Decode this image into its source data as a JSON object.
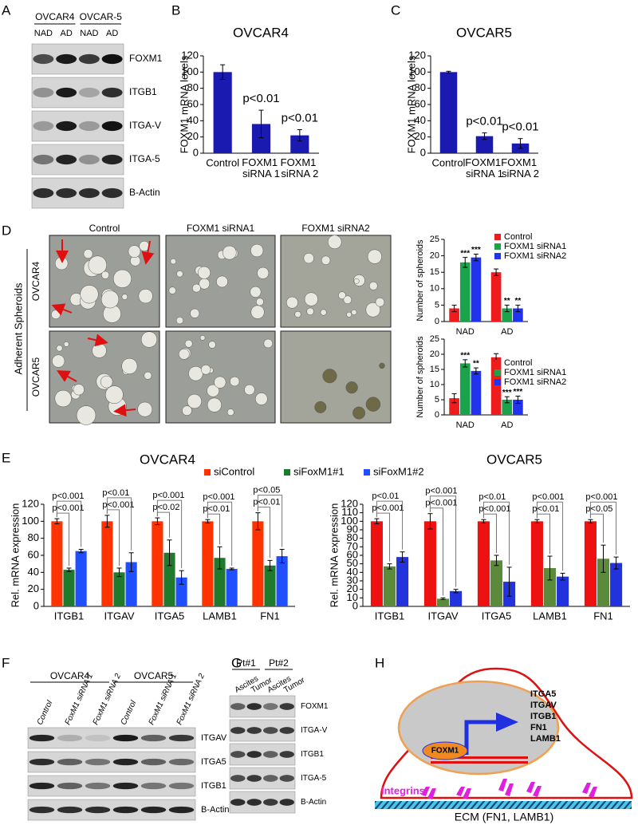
{
  "panel_labels": [
    "A",
    "B",
    "C",
    "D",
    "E",
    "F",
    "G",
    "H"
  ],
  "chart_data": [
    {
      "type": "bar",
      "title": "OVCAR4",
      "ylabel": "FOXM1 mRNA levels",
      "categories": [
        "Control",
        "FOXM1 siRNA 1",
        "FOXM1 siRNA 2"
      ],
      "values": [
        100,
        36,
        22
      ],
      "errors": [
        9,
        17,
        7
      ],
      "annotations": [
        null,
        "p<0.01",
        "p<0.01"
      ],
      "color": "#1a1ab0",
      "ylim": [
        0,
        120
      ],
      "yticks": [
        0,
        20,
        40,
        60,
        80,
        100,
        120
      ]
    },
    {
      "type": "bar",
      "title": "OVCAR5",
      "ylabel": "FOXM1 mRNA levels",
      "categories": [
        "Control",
        "FOXM1 siRNA 1",
        "FOXM1 siRNA 2"
      ],
      "values": [
        100,
        21,
        12
      ],
      "errors": [
        1,
        4,
        6
      ],
      "annotations": [
        null,
        "p<0.01",
        "p<0.01"
      ],
      "color": "#1a1ab0",
      "ylim": [
        0,
        120
      ],
      "yticks": [
        0,
        20,
        40,
        60,
        80,
        100,
        120
      ]
    },
    {
      "type": "bar",
      "ylabel": "Number of spheroids",
      "categories": [
        "NAD",
        "AD"
      ],
      "legend": "upper right",
      "series": [
        {
          "name": "Control",
          "color": "#ee1c1c",
          "values": [
            4,
            15
          ],
          "errors": [
            1,
            1
          ]
        },
        {
          "name": "FOXM1 siRNA1",
          "color": "#1aa34a",
          "values": [
            18,
            4
          ],
          "errors": [
            1.5,
            1
          ],
          "annotations": [
            "***",
            "**"
          ]
        },
        {
          "name": "FOXM1 siRNA2",
          "color": "#2233ee",
          "values": [
            19.5,
            4
          ],
          "errors": [
            1,
            1
          ],
          "annotations": [
            "***",
            "**"
          ]
        }
      ],
      "ylim": [
        0,
        25
      ],
      "yticks": [
        0,
        5,
        10,
        15,
        20,
        25
      ]
    },
    {
      "type": "bar",
      "ylabel": "Number of spheroids",
      "categories": [
        "NAD",
        "AD"
      ],
      "legend": "upper right",
      "series": [
        {
          "name": "Control",
          "color": "#ee1c1c",
          "values": [
            5.5,
            19
          ],
          "errors": [
            1.5,
            1.2
          ]
        },
        {
          "name": "FOXM1 siRNA1",
          "color": "#1aa34a",
          "values": [
            17,
            5
          ],
          "errors": [
            1.2,
            1
          ],
          "annotations": [
            "***",
            "***"
          ]
        },
        {
          "name": "FOXM1 siRNA2",
          "color": "#2233ee",
          "values": [
            14.5,
            5
          ],
          "errors": [
            1,
            1.2
          ],
          "annotations": [
            "**",
            "***"
          ]
        }
      ],
      "ylim": [
        0,
        25
      ],
      "yticks": [
        0,
        5,
        10,
        15,
        20,
        25
      ]
    },
    {
      "type": "bar",
      "title": "OVCAR4",
      "ylabel": "Rel. mRNA expression",
      "legend": "top",
      "categories": [
        "ITGB1",
        "ITGAV",
        "ITGA5",
        "LAMB1",
        "FN1"
      ],
      "series": [
        {
          "name": "siControl",
          "color": "#ff3300",
          "values": [
            100,
            100,
            100,
            100,
            100
          ],
          "errors": [
            3,
            7,
            4,
            2,
            10
          ]
        },
        {
          "name": "siFoxM1#1",
          "color": "#1f7a2e",
          "values": [
            43,
            40,
            63,
            57,
            48
          ],
          "errors": [
            2,
            5,
            15,
            13,
            6
          ],
          "p_values": [
            "p<0.001",
            "p<0.001",
            "p<0.02",
            "p<0.01",
            "p<0.01"
          ]
        },
        {
          "name": "siFoxM1#2",
          "color": "#1f4fff",
          "values": [
            65,
            52,
            34,
            44,
            59
          ],
          "errors": [
            2,
            11,
            8,
            1,
            8
          ],
          "p_values": [
            "p<0.001",
            "p<0.01",
            "p<0.001",
            "p<0.001",
            "p<0.05"
          ]
        }
      ],
      "ylim": [
        0,
        120
      ],
      "yticks": [
        0,
        20,
        40,
        60,
        80,
        100,
        120
      ]
    },
    {
      "type": "bar",
      "title": "OVCAR5",
      "ylabel": "Rel. mRNA expression",
      "categories": [
        "ITGB1",
        "ITGAV",
        "ITGA5",
        "LAMB1",
        "FN1"
      ],
      "series": [
        {
          "color": "#ee1111",
          "values": [
            100,
            100,
            100,
            100,
            100
          ],
          "errors": [
            3,
            9,
            2,
            2,
            2
          ]
        },
        {
          "color": "#5a8a3a",
          "values": [
            47,
            9,
            54,
            45,
            56
          ],
          "errors": [
            3,
            1,
            6,
            14,
            16
          ],
          "p_values": [
            "p<0.001",
            "p<0.001",
            "p<0.001",
            "p<0.01",
            "p<0.05"
          ]
        },
        {
          "color": "#2233dd",
          "values": [
            58,
            18,
            29,
            35,
            51
          ],
          "errors": [
            6,
            2,
            17,
            4,
            7
          ],
          "p_values": [
            "p<0.01",
            "p<0.001",
            "p<0.01",
            "p<0.001",
            "p<0.001"
          ]
        }
      ],
      "ylim": [
        0,
        120
      ],
      "yticks": [
        0,
        10,
        20,
        30,
        40,
        50,
        60,
        70,
        80,
        90,
        100,
        110,
        120
      ]
    }
  ],
  "blot_a": {
    "groups": [
      {
        "name": "OVCAR4",
        "lanes": [
          "NAD",
          "AD"
        ]
      },
      {
        "name": "OVCAR-5",
        "lanes": [
          "NAD",
          "AD"
        ]
      }
    ],
    "rows": [
      "FOXM1",
      "ITGB1",
      "ITGA-V",
      "ITGA-5",
      "B-Actin"
    ]
  },
  "blot_f": {
    "groups": [
      {
        "name": "OVCAR4",
        "lanes": [
          "Control",
          "FoxM1 siRNA 1",
          "FoxM1 siRNA 2"
        ]
      },
      {
        "name": "OVCAR5",
        "lanes": [
          "Control",
          "FoxM1 siRNA 1",
          "FoxM1 siRNA 2"
        ]
      }
    ],
    "rows": [
      "ITGAV",
      "ITGA5",
      "ITGB1",
      "B-Actin"
    ]
  },
  "blot_g": {
    "groups": [
      {
        "name": "Pt#1",
        "lanes": [
          "Ascites",
          "Tumor"
        ]
      },
      {
        "name": "Pt#2",
        "lanes": [
          "Ascites",
          "Tumor"
        ]
      }
    ],
    "rows": [
      "FOXM1",
      "ITGA-V",
      "ITGB1",
      "ITGA-5",
      "B-Actin"
    ]
  },
  "images_d": {
    "columns": [
      "Control",
      "FOXM1 siRNA1",
      "FOXM1 siRNA2"
    ],
    "rows": [
      "OVCAR4",
      "OVCAR5"
    ],
    "side_label": "Adherent Spheroids"
  },
  "diagram_h": {
    "factor": "FOXM1",
    "genes": [
      "ITGA5",
      "ITGAV",
      "ITGB1",
      "FN1",
      "LAMB1"
    ],
    "receptor": "Integrins",
    "matrix": "ECM (FN1, LAMB1)"
  }
}
